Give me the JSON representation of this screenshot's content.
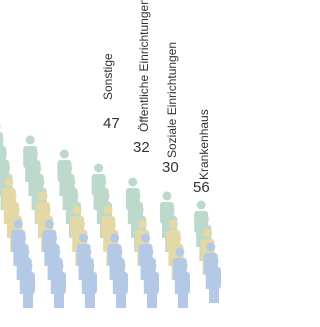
{
  "chart_data": {
    "type": "pictogram",
    "categories": [
      "Sonstige",
      "Öffentliche Einrichtungen",
      "Soziale Einrichtungen",
      "Krankenhaus"
    ],
    "values": [
      47,
      32,
      30,
      56
    ]
  }
}
